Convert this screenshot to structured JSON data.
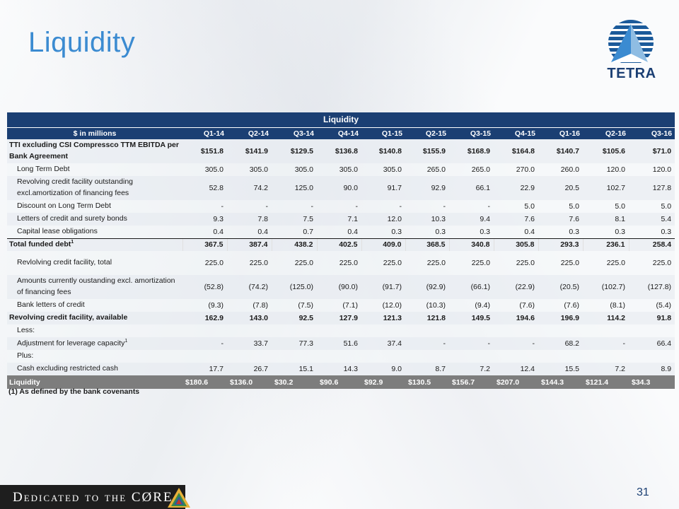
{
  "slide": {
    "title": "Liquidity",
    "logo_text": "TETRA",
    "footnote": "(1) As defined by the bank covenants",
    "footer_tagline": "Dedicated to the CØRE",
    "page_number": "31"
  },
  "table": {
    "title": "Liquidity",
    "unit_header": "$ in millions",
    "columns": [
      "Q1-14",
      "Q2-14",
      "Q3-14",
      "Q4-14",
      "Q1-15",
      "Q2-15",
      "Q3-15",
      "Q4-15",
      "Q1-16",
      "Q2-16",
      "Q3-16"
    ],
    "rows": [
      {
        "label": "TTI excluding CSI Compressco TTM EBITDA per Bank Agreement",
        "values": [
          "$151.8",
          "$141.9",
          "$129.5",
          "$136.8",
          "$140.8",
          "$155.9",
          "$168.9",
          "$164.8",
          "$140.7",
          "$105.6",
          "$71.0"
        ]
      },
      {
        "label": "Long Term Debt",
        "values": [
          "305.0",
          "305.0",
          "305.0",
          "305.0",
          "305.0",
          "265.0",
          "265.0",
          "270.0",
          "260.0",
          "120.0",
          "120.0"
        ]
      },
      {
        "label": "Revolving credit facility outstanding excl.amortization of financing fees",
        "values": [
          "52.8",
          "74.2",
          "125.0",
          "90.0",
          "91.7",
          "92.9",
          "66.1",
          "22.9",
          "20.5",
          "102.7",
          "127.8"
        ]
      },
      {
        "label": "Discount on Long Term Debt",
        "values": [
          "-",
          "-",
          "-",
          "-",
          "-",
          "-",
          "-",
          "5.0",
          "5.0",
          "5.0",
          "5.0"
        ]
      },
      {
        "label": "Letters of credit and surety bonds",
        "values": [
          "9.3",
          "7.8",
          "7.5",
          "7.1",
          "12.0",
          "10.3",
          "9.4",
          "7.6",
          "7.6",
          "8.1",
          "5.4"
        ]
      },
      {
        "label": "Capital lease obligations",
        "values": [
          "0.4",
          "0.4",
          "0.7",
          "0.4",
          "0.3",
          "0.3",
          "0.3",
          "0.4",
          "0.3",
          "0.3",
          "0.3"
        ]
      },
      {
        "label": "Total funded debt",
        "sup": "1",
        "values": [
          "367.5",
          "387.4",
          "438.2",
          "402.5",
          "409.0",
          "368.5",
          "340.8",
          "305.8",
          "293.3",
          "236.1",
          "258.4"
        ]
      },
      {
        "label": "Revlolving credit facility, total",
        "values": [
          "225.0",
          "225.0",
          "225.0",
          "225.0",
          "225.0",
          "225.0",
          "225.0",
          "225.0",
          "225.0",
          "225.0",
          "225.0"
        ]
      },
      {
        "label": "Amounts currently oustanding excl. amortization of financing fees",
        "values": [
          "(52.8)",
          "(74.2)",
          "(125.0)",
          "(90.0)",
          "(91.7)",
          "(92.9)",
          "(66.1)",
          "(22.9)",
          "(20.5)",
          "(102.7)",
          "(127.8)"
        ]
      },
      {
        "label": "Bank letters of credit",
        "values": [
          "(9.3)",
          "(7.8)",
          "(7.5)",
          "(7.1)",
          "(12.0)",
          "(10.3)",
          "(9.4)",
          "(7.6)",
          "(7.6)",
          "(8.1)",
          "(5.4)"
        ]
      },
      {
        "label": "Revolving credit facility, available",
        "values": [
          "162.9",
          "143.0",
          "92.5",
          "127.9",
          "121.3",
          "121.8",
          "149.5",
          "194.6",
          "196.9",
          "114.2",
          "91.8"
        ]
      },
      {
        "label": "Less:",
        "values": [
          "",
          "",
          "",
          "",
          "",
          "",
          "",
          "",
          "",
          "",
          ""
        ]
      },
      {
        "label": "Adjustment for leverage capacity",
        "sup": "1",
        "values": [
          "-",
          "33.7",
          "77.3",
          "51.6",
          "37.4",
          "-",
          "-",
          "-",
          "68.2",
          "-",
          "66.4"
        ]
      },
      {
        "label": "Plus:",
        "values": [
          "",
          "",
          "",
          "",
          "",
          "",
          "",
          "",
          "",
          "",
          ""
        ]
      },
      {
        "label": "Cash excluding restricted cash",
        "values": [
          "17.7",
          "26.7",
          "15.1",
          "14.3",
          "9.0",
          "8.7",
          "7.2",
          "12.4",
          "15.5",
          "7.2",
          "8.9"
        ]
      }
    ],
    "liquidity_row": {
      "label": "Liquidity",
      "currency": "$",
      "values": [
        "180.6",
        "136.0",
        "30.2",
        "90.6",
        "92.9",
        "130.5",
        "156.7",
        "207.0",
        "144.3",
        "121.4",
        "34.3"
      ]
    }
  },
  "colors": {
    "header_navy": "#1b3f73",
    "title_blue": "#3b8bd1",
    "liquidity_row_gray": "#7d7d7d"
  }
}
